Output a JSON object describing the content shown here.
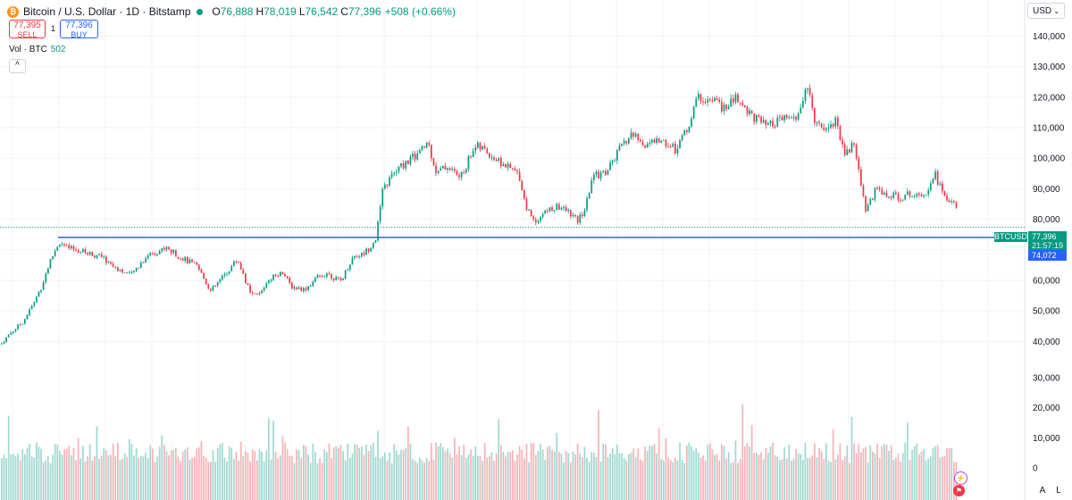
{
  "header": {
    "title": "Bitcoin / U.S. Dollar · 1D · Bitstamp",
    "coin_glyph": "₿",
    "o_label": "O",
    "o_value": "76,888",
    "h_label": "H",
    "h_value": "78,019",
    "l_label": "L",
    "l_value": "76,542",
    "c_label": "C",
    "c_value": "77,396",
    "change": "+508 (+0.66%)"
  },
  "trade": {
    "sell_price": "77,395",
    "sell_label": "SELL",
    "quantity": "1",
    "buy_price": "77,396",
    "buy_label": "BUY"
  },
  "volume_legend": {
    "label": "Vol · BTC",
    "value": "502"
  },
  "collapse_glyph": "^",
  "currency": {
    "value": "USD",
    "chevron": "⌄"
  },
  "price_tags": {
    "symbol": "BTCUSD",
    "last_price": "77,396",
    "countdown": "21:57:19",
    "level_price": "74,072"
  },
  "axis_buttons": {
    "auto": "A",
    "log": "L"
  },
  "colors": {
    "up": "#089981",
    "down": "#f23645",
    "level": "#2962ff",
    "grid": "#f0f3fa",
    "vol_up": "#9ed8cf",
    "vol_down": "#f7b2b7"
  },
  "chart_data": {
    "type": "candlestick",
    "title": "Bitcoin / U.S. Dollar · 1D · Bitstamp",
    "price_axis": {
      "min": 36000,
      "max": 146000,
      "ticks": [
        40000,
        50000,
        60000,
        70000,
        80000,
        90000,
        100000,
        110000,
        120000,
        130000,
        140000
      ],
      "tick_labels": [
        "40,000",
        "50,000",
        "60,000",
        "70,000",
        "80,000",
        "90,000",
        "100,000",
        "110,000",
        "120,000",
        "130,000",
        "140,000"
      ]
    },
    "volume_axis": {
      "min": 0,
      "max": 30000,
      "ticks": [
        0,
        10000,
        20000,
        30000
      ],
      "tick_labels": [
        "0",
        "10,000",
        "20,000",
        "30,000"
      ]
    },
    "horizontal_level": 74072,
    "last_price": 77396,
    "close_series_key_points": [
      [
        0,
        39000
      ],
      [
        10,
        42500
      ],
      [
        25,
        46500
      ],
      [
        35,
        51500
      ],
      [
        45,
        57500
      ],
      [
        55,
        66000
      ],
      [
        65,
        72500
      ],
      [
        75,
        70500
      ],
      [
        90,
        69500
      ],
      [
        110,
        68000
      ],
      [
        125,
        65000
      ],
      [
        145,
        61500
      ],
      [
        165,
        68500
      ],
      [
        185,
        70500
      ],
      [
        205,
        67000
      ],
      [
        220,
        64500
      ],
      [
        235,
        56500
      ],
      [
        250,
        61500
      ],
      [
        265,
        67000
      ],
      [
        280,
        55000
      ],
      [
        290,
        55500
      ],
      [
        300,
        60500
      ],
      [
        315,
        63000
      ],
      [
        325,
        58000
      ],
      [
        340,
        57000
      ],
      [
        355,
        61000
      ],
      [
        365,
        62500
      ],
      [
        380,
        59500
      ],
      [
        395,
        68000
      ],
      [
        405,
        68500
      ],
      [
        412,
        70500
      ],
      [
        420,
        74000
      ],
      [
        428,
        90000
      ],
      [
        440,
        95000
      ],
      [
        455,
        99000
      ],
      [
        470,
        102000
      ],
      [
        478,
        105500
      ],
      [
        488,
        95000
      ],
      [
        500,
        97500
      ],
      [
        515,
        93500
      ],
      [
        530,
        104000
      ],
      [
        540,
        103000
      ],
      [
        555,
        99500
      ],
      [
        570,
        96500
      ],
      [
        580,
        95000
      ],
      [
        588,
        84000
      ],
      [
        598,
        79500
      ],
      [
        612,
        83000
      ],
      [
        625,
        84000
      ],
      [
        638,
        82000
      ],
      [
        645,
        79000
      ],
      [
        655,
        84000
      ],
      [
        662,
        94000
      ],
      [
        678,
        95500
      ],
      [
        692,
        102500
      ],
      [
        706,
        108000
      ],
      [
        720,
        104500
      ],
      [
        740,
        106000
      ],
      [
        755,
        103000
      ],
      [
        770,
        110500
      ],
      [
        780,
        120000
      ],
      [
        800,
        118500
      ],
      [
        812,
        116000
      ],
      [
        822,
        120000
      ],
      [
        838,
        115000
      ],
      [
        858,
        110000
      ],
      [
        880,
        113500
      ],
      [
        890,
        112000
      ],
      [
        902,
        123500
      ],
      [
        912,
        112000
      ],
      [
        925,
        110000
      ],
      [
        935,
        112500
      ],
      [
        945,
        101500
      ],
      [
        955,
        104500
      ],
      [
        962,
        94000
      ],
      [
        968,
        83000
      ],
      [
        980,
        90000
      ],
      [
        995,
        87500
      ],
      [
        1010,
        87500
      ],
      [
        1025,
        89000
      ],
      [
        1035,
        88500
      ],
      [
        1045,
        95500
      ],
      [
        1058,
        86000
      ],
      [
        1068,
        86500
      ],
      [
        1072,
        77396
      ]
    ]
  }
}
